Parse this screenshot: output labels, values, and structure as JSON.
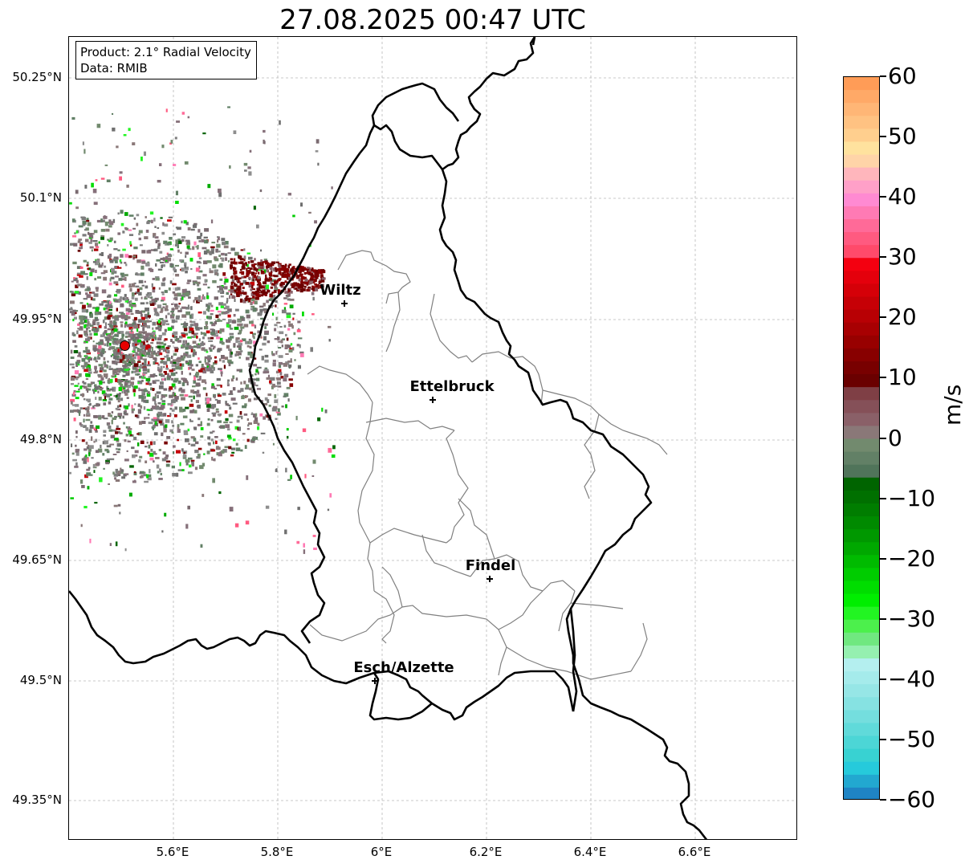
{
  "title": "27.08.2025 00:47 UTC",
  "info_box": {
    "product": "Product: 2.1° Radial Velocity",
    "data": "Data: RMIB"
  },
  "lat_labels": [
    "50.25°N",
    "50.1°N",
    "49.95°N",
    "49.8°N",
    "49.65°N",
    "49.5°N",
    "49.35°N"
  ],
  "lon_labels": [
    "5.6°E",
    "5.8°E",
    "6°E",
    "6.2°E",
    "6.4°E",
    "6.6°E"
  ],
  "cities": {
    "wiltz": "Wiltz",
    "ettelbruck": "Ettelbruck",
    "findel": "Findel",
    "esch": "Esch/Alzette"
  },
  "colorbar": {
    "unit": "m/s",
    "ticks": [
      "60",
      "50",
      "40",
      "30",
      "20",
      "10",
      "0",
      "−10",
      "−20",
      "−30",
      "−40",
      "−50",
      "−60"
    ],
    "range": [
      -60,
      60
    ]
  },
  "colors": {
    "border_country": "#000000",
    "border_canton": "#808080",
    "radar_site": "#e60000",
    "grid": "#b0b0b0"
  }
}
